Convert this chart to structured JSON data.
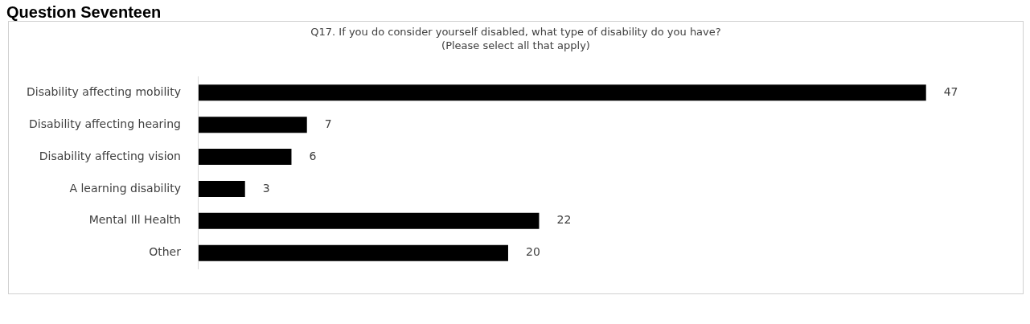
{
  "chart_data": {
    "type": "bar",
    "orientation": "horizontal",
    "title": "Question Seventeen",
    "subtitle": "Q17. If you do consider yourself disabled, what type of disability do you have?\n(Please select all that apply)",
    "categories": [
      "Disability affecting mobility",
      "Disability affecting hearing",
      "Disability affecting vision",
      "A learning disability",
      "Mental Ill Health",
      "Other"
    ],
    "values": [
      47,
      7,
      6,
      3,
      22,
      20
    ],
    "color": "#000000",
    "data_labels": true,
    "legend": false
  }
}
